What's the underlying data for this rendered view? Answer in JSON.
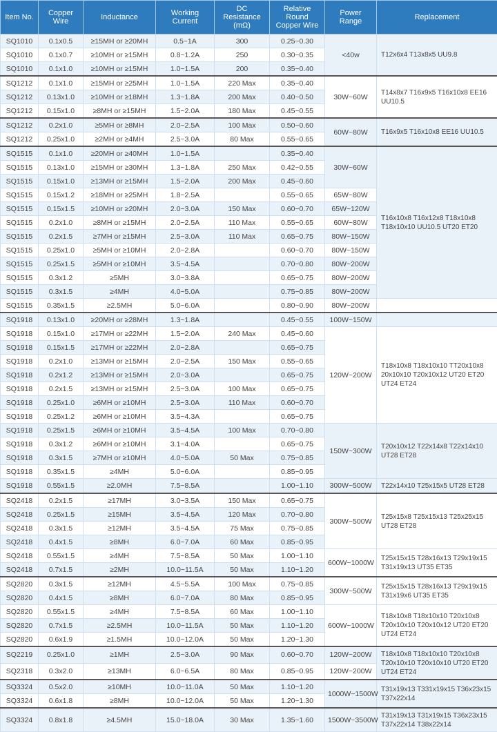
{
  "headers": [
    "Item No.",
    "Copper Wire",
    "Inductance",
    "Working Current",
    "DC Resistance (mΩ)",
    "Relative Round Copper Wire",
    "Power Range",
    "Replacement"
  ],
  "colors": {
    "header_bg": "#2e7bbd",
    "header_fg": "#ffffff",
    "row_odd": "#e9f1f9",
    "row_even": "#ffffff",
    "border": "#cddff0",
    "section_border": "#555555"
  },
  "rows": [
    {
      "itm": "SQ1010",
      "cw": "0.1x0.5",
      "ind": "≥15MH or ≥20MH",
      "wc": "0.5~1A",
      "dc": "300",
      "rr": "0.25~0.30",
      "pr": "<40w",
      "prspan": 3,
      "rep": "T12x6x4 T13x8x5 UU9.8",
      "repspan": 3,
      "cls": "odd"
    },
    {
      "itm": "SQ1010",
      "cw": "0.1x0.7",
      "ind": "≥10MH or ≥15MH",
      "wc": "0.8~1.2A",
      "dc": "250",
      "rr": "0.30~0.35",
      "cls": "even"
    },
    {
      "itm": "SQ1010",
      "cw": "0.1x1.0",
      "ind": "≥10MH or ≥15MH",
      "wc": "1.0~1.5A",
      "dc": "200",
      "rr": "0.35~0.40",
      "cls": "odd"
    },
    {
      "itm": "SQ1212",
      "cw": "0.1x1.0",
      "ind": "≥15MH or ≥25MH",
      "wc": "1.0~1.5A",
      "dc": "220 Max",
      "rr": "0.35~0.40",
      "pr": "30W~60W",
      "prspan": 3,
      "rep": "T14x8x7 T16x9x5 T16x10x8 EE16 UU10.5",
      "repspan": 3,
      "cls": "even",
      "top": true
    },
    {
      "itm": "SQ1212",
      "cw": "0.13x1.0",
      "ind": "≥10MH or ≥18MH",
      "wc": "1.3~1.8A",
      "dc": "200 Max",
      "rr": "0.40~0.50",
      "cls": "odd"
    },
    {
      "itm": "SQ1212",
      "cw": "0.15x1.0",
      "ind": "≥8MH or ≥15MH",
      "wc": "1.5~2.0A",
      "dc": "180 Max",
      "rr": "0.45~0.55",
      "cls": "even"
    },
    {
      "itm": "SQ1212",
      "cw": "0.2x1.0",
      "ind": "≥5MH or ≥8MH",
      "wc": "2.0~2.5A",
      "dc": "100 Max",
      "rr": "0.50~0.60",
      "pr": "60W~80W",
      "prspan": 2,
      "rep": "T16x9x5 T16x10x8 EE16 UU10.5",
      "repspan": 2,
      "cls": "odd",
      "top": true
    },
    {
      "itm": "SQ1212",
      "cw": "0.25x1.0",
      "ind": "≥2MH or ≥4MH",
      "wc": "2.5~3.0A",
      "dc": "80 Max",
      "rr": "0.55~0.65",
      "cls": "even"
    },
    {
      "itm": "SQ1515",
      "cw": "0.1x1.0",
      "ind": "≥20MH or ≥40MH",
      "wc": "1.0~1.5A",
      "dc": "",
      "rr": "0.35~0.40",
      "pr": "30W~60W",
      "prspan": 3,
      "rep": "T16x10x8 T16x12x8 T18x10x8 T18x10x10 UU10.5 UT20 ET20",
      "repspan": 11,
      "cls": "odd",
      "top": true
    },
    {
      "itm": "SQ1515",
      "cw": "0.13x1.0",
      "ind": "≥15MH or ≥30MH",
      "wc": "1.3~1.8A",
      "dc": "250 Max",
      "rr": "0.42~0.55",
      "cls": "even"
    },
    {
      "itm": "SQ1515",
      "cw": "0.15x1.0",
      "ind": "≥13MH or ≥15MH",
      "wc": "1.5~2.0A",
      "dc": "200 Max",
      "rr": "0.45~0.60",
      "cls": "odd"
    },
    {
      "itm": "SQ1515",
      "cw": "0.15x1.2",
      "ind": "≥18MH or ≥25MH",
      "wc": "1.8~2.5A",
      "dc": "",
      "rr": "0.55~0.65",
      "pr": "65W~80W",
      "prspan": 1,
      "cls": "even"
    },
    {
      "itm": "SQ1515",
      "cw": "0.15x1.5",
      "ind": "≥10MH or ≥20MH",
      "wc": "2.0~3.0A",
      "dc": "150 Max",
      "rr": "0.60~0.70",
      "pr": "65W~120W",
      "prspan": 1,
      "cls": "odd"
    },
    {
      "itm": "SQ1515",
      "cw": "0.2x1.0",
      "ind": "≥8MH or ≥15MH",
      "wc": "2.0~2.5A",
      "dc": "110 Max",
      "rr": "0.55~0.65",
      "pr": "60W~80W",
      "prspan": 1,
      "cls": "even"
    },
    {
      "itm": "SQ1515",
      "cw": "0.2x1.5",
      "ind": "≥7MH or ≥15MH",
      "wc": "2.5~3.0A",
      "dc": "110 Max",
      "rr": "0.65~0.75",
      "pr": "80W~150W",
      "prspan": 1,
      "cls": "odd"
    },
    {
      "itm": "SQ1515",
      "cw": "0.25x1.0",
      "ind": "≥5MH or ≥10MH",
      "wc": "2.0~2.8A",
      "dc": "",
      "rr": "0.60~0.70",
      "pr": "80W~150W",
      "prspan": 1,
      "cls": "even"
    },
    {
      "itm": "SQ1515",
      "cw": "0.25x1.5",
      "ind": "≥5MH or ≥10MH",
      "wc": "3.5~4.5A",
      "dc": "",
      "rr": "0.70~0.80",
      "pr": "80W~200W",
      "prspan": 1,
      "cls": "odd"
    },
    {
      "itm": "SQ1515",
      "cw": "0.3x1.2",
      "ind": "≥5MH",
      "wc": "3.0~3.8A",
      "dc": "",
      "rr": "0.65~0.75",
      "pr": "80W~200W",
      "prspan": 1,
      "cls": "even"
    },
    {
      "itm": "SQ1515",
      "cw": "0.3x1.5",
      "ind": "≥4MH",
      "wc": "4.0~5.0A",
      "dc": "",
      "rr": "0.75~0.85",
      "pr": "80W~200W",
      "prspan": 1,
      "cls": "odd"
    },
    {
      "itm": "SQ1515",
      "cw": "0.35x1.5",
      "ind": "≥2.5MH",
      "wc": "5.0~6.0A",
      "dc": "",
      "rr": "0.80~0.90",
      "pr": "80W~200W",
      "prspan": 1,
      "cls": "even"
    },
    {
      "itm": "SQ1918",
      "cw": "0.13x1.0",
      "ind": "≥20MH or ≥28MH",
      "wc": "1.3~1.8A",
      "dc": "",
      "rr": "0.45~0.55",
      "pr": "100W~150W",
      "prspan": 1,
      "rep": "",
      "repspan": 1,
      "cls": "odd",
      "top": true
    },
    {
      "itm": "SQ1918",
      "cw": "0.15x1.0",
      "ind": "≥17MH or ≥22MH",
      "wc": "1.5~2.0A",
      "dc": "240 Max",
      "rr": "0.45~0.60",
      "pr": "120W~200W",
      "prspan": 7,
      "rep": "T18x10x8 T18x10x10 TT20x10x8 20x10x10 T20x10x12 UT20 ET20 UT24 ET24",
      "repspan": 7,
      "cls": "even"
    },
    {
      "itm": "SQ1918",
      "cw": "0.15x1.5",
      "ind": "≥17MH or ≥22MH",
      "wc": "2.0~2.8A",
      "dc": "",
      "rr": "0.65~0.75",
      "cls": "odd"
    },
    {
      "itm": "SQ1918",
      "cw": "0.2x1.0",
      "ind": "≥13MH or ≥15MH",
      "wc": "2.0~2.5A",
      "dc": "150 Max",
      "rr": "0.55~0.65",
      "cls": "even"
    },
    {
      "itm": "SQ1918",
      "cw": "0.2x1.2",
      "ind": "≥13MH or ≥15MH",
      "wc": "2.0~3.0A",
      "dc": "",
      "rr": "0.65~0.75",
      "cls": "odd"
    },
    {
      "itm": "SQ1918",
      "cw": "0.2x1.5",
      "ind": "≥13MH or ≥15MH",
      "wc": "2.5~3.0A",
      "dc": "100 Max",
      "rr": "0.65~0.75",
      "cls": "even"
    },
    {
      "itm": "SQ1918",
      "cw": "0.25x1.0",
      "ind": "≥6MH or ≥10MH",
      "wc": "2.5~3.0A",
      "dc": "110 Max",
      "rr": "0.60~0.70",
      "cls": "odd"
    },
    {
      "itm": "SQ1918",
      "cw": "0.25x1.2",
      "ind": "≥6MH or ≥10MH",
      "wc": "3.5~4.3A",
      "dc": "",
      "rr": "0.65~0.75",
      "cls": "even"
    },
    {
      "itm": "SQ1918",
      "cw": "0.25x1.5",
      "ind": "≥6MH or ≥10MH",
      "wc": "3.5~4.5A",
      "dc": "100 Max",
      "rr": "0.70~0.80",
      "pr": "150W~300W",
      "prspan": 4,
      "rep": "T20x10x12 T22x14x8 T22x14x10 UT28 ET28",
      "repspan": 4,
      "cls": "odd"
    },
    {
      "itm": "SQ1918",
      "cw": "0.3x1.2",
      "ind": "≥6MH or ≥10MH",
      "wc": "3.1~4.0A",
      "dc": "",
      "rr": "0.65~0.75",
      "cls": "even"
    },
    {
      "itm": "SQ1918",
      "cw": "0.3x1.5",
      "ind": "≥7MH or ≥10MH",
      "wc": "4.0~5.0A",
      "dc": "50 Max",
      "rr": "0.75~0.85",
      "cls": "odd"
    },
    {
      "itm": "SQ1918",
      "cw": "0.35x1.5",
      "ind": "≥4MH",
      "wc": "5.0~6.0A",
      "dc": "",
      "rr": "0.85~0.95",
      "cls": "even"
    },
    {
      "itm": "SQ1918",
      "cw": "0.55x1.5",
      "ind": "≥2.0MH",
      "wc": "7.5~8.5A",
      "dc": "",
      "rr": "1.00~1.10",
      "pr": "300W~500W",
      "prspan": 1,
      "rep": "T22x14x10 T25x15x5 UT28 ET28",
      "repspan": 1,
      "cls": "odd"
    },
    {
      "itm": "SQ2418",
      "cw": "0.2x1.5",
      "ind": "≥17MH",
      "wc": "3.0~3.5A",
      "dc": "150 Max",
      "rr": "0.65~0.75",
      "pr": "300W~500W",
      "prspan": 4,
      "rep": "T25x15x8 T25x15x13 T25x25x15 UT28 ET28",
      "repspan": 4,
      "cls": "even",
      "top": true
    },
    {
      "itm": "SQ2418",
      "cw": "0.25x1.5",
      "ind": "≥15MH",
      "wc": "3.5~4.5A",
      "dc": "120 Max",
      "rr": "0.70~0.80",
      "cls": "odd"
    },
    {
      "itm": "SQ2418",
      "cw": "0.3x1.5",
      "ind": "≥12MH",
      "wc": "3.5~4.5A",
      "dc": "75 Max",
      "rr": "0.75~0.85",
      "cls": "even"
    },
    {
      "itm": "SQ2418",
      "cw": "0.4x1.5",
      "ind": "≥8MH",
      "wc": "6.0~7.0A",
      "dc": "60 Max",
      "rr": "0.85~0.95",
      "cls": "odd"
    },
    {
      "itm": "SQ2418",
      "cw": "0.55x1.5",
      "ind": "≥4MH",
      "wc": "7.5~8.5A",
      "dc": "50 Max",
      "rr": "1.00~1.10",
      "pr": "600W~1000W",
      "prspan": 2,
      "rep": "T25x15x15 T28x16x13 T29x19x15 T31x19x13 UT35 ET35",
      "repspan": 2,
      "cls": "even"
    },
    {
      "itm": "SQ2418",
      "cw": "0.7x1.5",
      "ind": "≥2MH",
      "wc": "10.0~11.5A",
      "dc": "50 Max",
      "rr": "1.10~1.20",
      "cls": "odd"
    },
    {
      "itm": "SQ2820",
      "cw": "0.3x1.5",
      "ind": "≥12MH",
      "wc": "4.5~5.5A",
      "dc": "100 Max",
      "rr": "0.75~0.85",
      "pr": "300W~500W",
      "prspan": 2,
      "rep": "T25x15x15 T28x16x13 T29x19x15 T31x19x6 UT35 ET35",
      "repspan": 2,
      "cls": "even",
      "top": true
    },
    {
      "itm": "SQ2820",
      "cw": "0.4x1.5",
      "ind": "≥8MH",
      "wc": "6.0~7.0A",
      "dc": "80 Max",
      "rr": "0.85~0.95",
      "cls": "odd"
    },
    {
      "itm": "SQ2820",
      "cw": "0.55x1.5",
      "ind": "≥4MH",
      "wc": "7.5~8.5A",
      "dc": "60 Max",
      "rr": "1.00~1.10",
      "pr": "600W~1000W",
      "prspan": 3,
      "rep": "T18x10x8 T18x10x10 T20x10x8 T20x10x10 T20x10x12 UT20 ET20 UT24 ET24",
      "repspan": 3,
      "cls": "even"
    },
    {
      "itm": "SQ2820",
      "cw": "0.7x1.5",
      "ind": "≥2.5MH",
      "wc": "10.0~11.5A",
      "dc": "50 Max",
      "rr": "1.10~1.20",
      "cls": "odd"
    },
    {
      "itm": "SQ2820",
      "cw": "0.6x1.9",
      "ind": "≥1.5MH",
      "wc": "10.0~12.0A",
      "dc": "50 Max",
      "rr": "1.20~1.30",
      "cls": "even"
    },
    {
      "itm": "SQ2219",
      "cw": "0.25x1.0",
      "ind": "≥1MH",
      "wc": "2.5~3.0A",
      "dc": "90 Max",
      "rr": "0.60~0.70",
      "pr": "120W~200W",
      "prspan": 1,
      "rep": "T18x10x8 T18x10x10 T20x10x8 T20x10x10 T20x10x10 UT20 ET20 UT24 ET24",
      "repspan": 2,
      "cls": "odd",
      "top": true
    },
    {
      "itm": "SQ2318",
      "cw": "0.3x2.0",
      "ind": "≥13MH",
      "wc": "6.0~6.5A",
      "dc": "80 Max",
      "rr": "0.85~0.95",
      "pr": "120W~200W",
      "prspan": 1,
      "cls": "even"
    },
    {
      "itm": "SQ3324",
      "cw": "0.5x2.0",
      "ind": "≥10MH",
      "wc": "10.0~11.0A",
      "dc": "50 Max",
      "rr": "1.10~1.20",
      "pr": "1000W~1500W",
      "prspan": 2,
      "rep": "T31x19x13 T331x19x15 T36x23x15 T37x22x14",
      "repspan": 2,
      "cls": "odd",
      "top": true
    },
    {
      "itm": "SQ3324",
      "cw": "0.6x1.8",
      "ind": "≥8MH",
      "wc": "10.0~12.0A",
      "dc": "50 Max",
      "rr": "1.20~1.30",
      "cls": "even"
    },
    {
      "itm": "SQ3324",
      "cw": "0.8x1.8",
      "ind": "≥4.5MH",
      "wc": "15.0~18.0A",
      "dc": "30 Max",
      "rr": "1.35~1.60",
      "pr": "1500W~3500W",
      "prspan": 1,
      "rep": "T31x19x13 T31x19x15 T36x23x15 T37x22x14 T38x22x14",
      "repspan": 1,
      "cls": "odd",
      "top": true
    }
  ]
}
